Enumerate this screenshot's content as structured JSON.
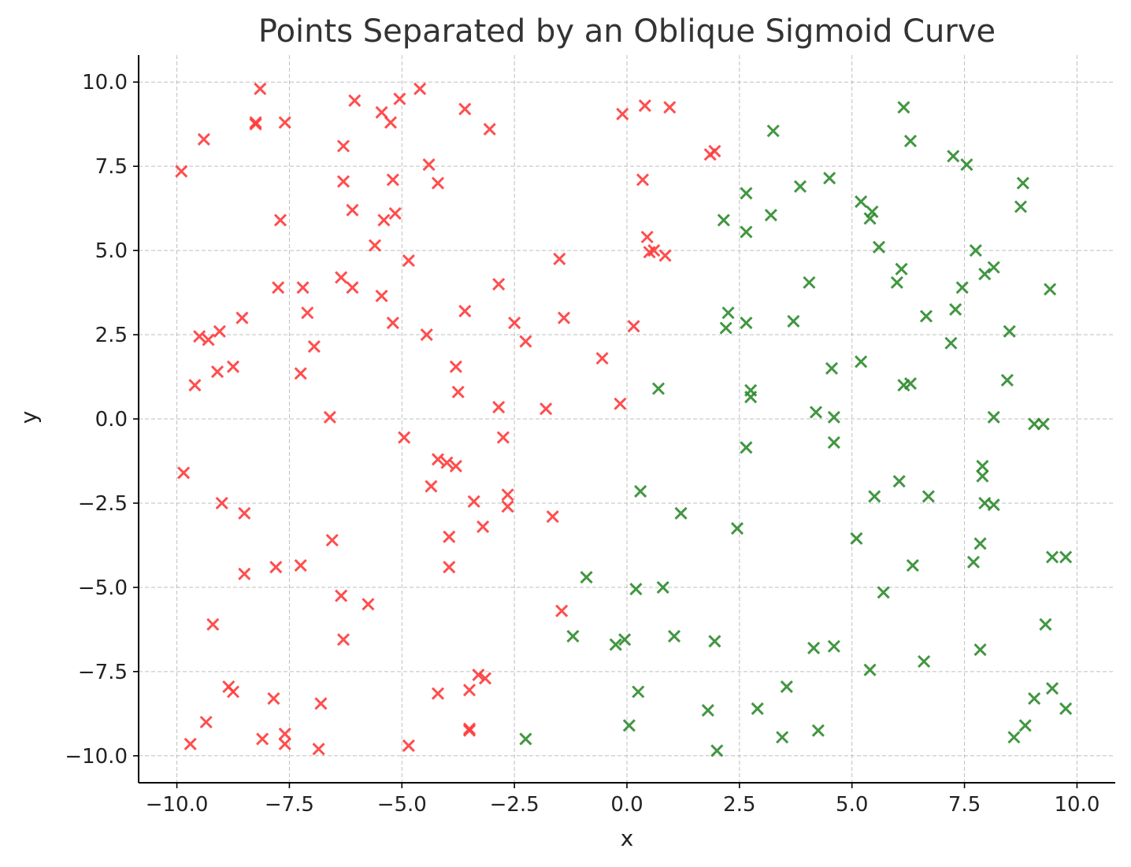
{
  "chart_data": {
    "type": "scatter",
    "title": "Points Separated by an Oblique Sigmoid Curve",
    "xlabel": "x",
    "ylabel": "y",
    "xlim": [
      -10.85,
      10.85
    ],
    "ylim": [
      -10.8,
      10.8
    ],
    "grid": true,
    "marker": "x",
    "x_ticks": [
      -10.0,
      -7.5,
      -5.0,
      -2.5,
      0.0,
      2.5,
      5.0,
      7.5,
      10.0
    ],
    "x_tick_labels": [
      "−10.0",
      "−7.5",
      "−5.0",
      "−2.5",
      "0.0",
      "2.5",
      "5.0",
      "7.5",
      "10.0"
    ],
    "y_ticks": [
      -10.0,
      -7.5,
      -5.0,
      -2.5,
      0.0,
      2.5,
      5.0,
      7.5,
      10.0
    ],
    "y_tick_labels": [
      "−10.0",
      "−7.5",
      "−5.0",
      "−2.5",
      "0.0",
      "2.5",
      "5.0",
      "7.5",
      "10.0"
    ],
    "series": [
      {
        "color": "#ff3b3b",
        "points": [
          [
            -9.9,
            7.35
          ],
          [
            -9.4,
            8.3
          ],
          [
            -8.15,
            9.8
          ],
          [
            -8.25,
            8.8
          ],
          [
            -8.25,
            8.75
          ],
          [
            -7.6,
            8.8
          ],
          [
            -6.05,
            9.45
          ],
          [
            -6.3,
            8.1
          ],
          [
            -6.3,
            7.05
          ],
          [
            -5.45,
            9.1
          ],
          [
            -5.05,
            9.5
          ],
          [
            -5.25,
            8.8
          ],
          [
            -4.6,
            9.8
          ],
          [
            -3.6,
            9.2
          ],
          [
            -3.05,
            8.6
          ],
          [
            -4.4,
            7.55
          ],
          [
            -5.2,
            7.1
          ],
          [
            -4.2,
            7.0
          ],
          [
            -6.1,
            6.2
          ],
          [
            -7.7,
            5.9
          ],
          [
            -5.4,
            5.9
          ],
          [
            -5.15,
            6.1
          ],
          [
            -5.6,
            5.15
          ],
          [
            -4.85,
            4.7
          ],
          [
            -6.35,
            4.2
          ],
          [
            -6.1,
            3.9
          ],
          [
            -7.75,
            3.9
          ],
          [
            -7.2,
            3.9
          ],
          [
            -5.45,
            3.65
          ],
          [
            -7.1,
            3.15
          ],
          [
            -8.55,
            3.0
          ],
          [
            -5.2,
            2.85
          ],
          [
            -9.05,
            2.6
          ],
          [
            -9.5,
            2.45
          ],
          [
            -9.3,
            2.35
          ],
          [
            -6.95,
            2.15
          ],
          [
            -4.45,
            2.5
          ],
          [
            -3.6,
            3.2
          ],
          [
            -2.85,
            4.0
          ],
          [
            -2.5,
            2.85
          ],
          [
            -2.25,
            2.3
          ],
          [
            -1.5,
            4.75
          ],
          [
            -1.4,
            3.0
          ],
          [
            -9.1,
            1.4
          ],
          [
            -8.75,
            1.55
          ],
          [
            -7.25,
            1.35
          ],
          [
            -9.6,
            1.0
          ],
          [
            -3.8,
            1.55
          ],
          [
            -3.75,
            0.8
          ],
          [
            -6.6,
            0.05
          ],
          [
            -2.85,
            0.35
          ],
          [
            -1.8,
            0.3
          ],
          [
            -0.55,
            1.8
          ],
          [
            -0.15,
            0.45
          ],
          [
            0.15,
            2.75
          ],
          [
            -4.95,
            -0.55
          ],
          [
            -2.75,
            -0.55
          ],
          [
            -4.2,
            -1.2
          ],
          [
            -4.0,
            -1.3
          ],
          [
            -3.8,
            -1.4
          ],
          [
            -9.85,
            -1.6
          ],
          [
            -9.0,
            -2.5
          ],
          [
            -8.5,
            -2.8
          ],
          [
            -4.35,
            -2.0
          ],
          [
            -3.4,
            -2.45
          ],
          [
            -2.65,
            -2.25
          ],
          [
            -2.65,
            -2.6
          ],
          [
            -1.65,
            -2.9
          ],
          [
            -3.2,
            -3.2
          ],
          [
            -3.95,
            -3.5
          ],
          [
            -6.55,
            -3.6
          ],
          [
            -7.8,
            -4.4
          ],
          [
            -7.25,
            -4.35
          ],
          [
            -8.5,
            -4.6
          ],
          [
            -3.95,
            -4.4
          ],
          [
            -6.35,
            -5.25
          ],
          [
            -5.75,
            -5.5
          ],
          [
            -1.45,
            -5.7
          ],
          [
            -9.2,
            -6.1
          ],
          [
            -6.3,
            -6.55
          ],
          [
            -8.85,
            -7.95
          ],
          [
            -8.75,
            -8.1
          ],
          [
            -7.85,
            -8.3
          ],
          [
            -6.8,
            -8.45
          ],
          [
            -4.2,
            -8.15
          ],
          [
            -3.5,
            -8.05
          ],
          [
            -3.3,
            -7.6
          ],
          [
            -3.15,
            -7.7
          ],
          [
            -9.35,
            -9.0
          ],
          [
            -3.5,
            -9.2
          ],
          [
            -3.5,
            -9.25
          ],
          [
            -9.7,
            -9.65
          ],
          [
            -8.1,
            -9.5
          ],
          [
            -7.6,
            -9.35
          ],
          [
            -7.6,
            -9.65
          ],
          [
            -6.85,
            -9.8
          ],
          [
            -4.85,
            -9.7
          ],
          [
            -0.1,
            9.05
          ],
          [
            0.4,
            9.3
          ],
          [
            0.95,
            9.25
          ],
          [
            1.85,
            7.85
          ],
          [
            1.95,
            7.95
          ],
          [
            0.35,
            7.1
          ],
          [
            0.45,
            5.4
          ],
          [
            0.5,
            4.95
          ],
          [
            0.6,
            5.0
          ],
          [
            0.85,
            4.85
          ]
        ]
      },
      {
        "color": "#2e8b2e",
        "points": [
          [
            6.15,
            9.25
          ],
          [
            3.25,
            8.55
          ],
          [
            6.3,
            8.25
          ],
          [
            7.25,
            7.8
          ],
          [
            7.55,
            7.55
          ],
          [
            4.5,
            7.15
          ],
          [
            8.8,
            7.0
          ],
          [
            3.85,
            6.9
          ],
          [
            2.65,
            6.7
          ],
          [
            5.2,
            6.45
          ],
          [
            5.45,
            6.15
          ],
          [
            5.4,
            5.95
          ],
          [
            3.2,
            6.05
          ],
          [
            8.75,
            6.3
          ],
          [
            2.15,
            5.9
          ],
          [
            2.65,
            5.55
          ],
          [
            5.6,
            5.1
          ],
          [
            7.75,
            5.0
          ],
          [
            6.1,
            4.45
          ],
          [
            8.15,
            4.5
          ],
          [
            7.95,
            4.3
          ],
          [
            4.05,
            4.05
          ],
          [
            6.0,
            4.05
          ],
          [
            7.45,
            3.9
          ],
          [
            9.4,
            3.85
          ],
          [
            2.25,
            3.15
          ],
          [
            7.3,
            3.25
          ],
          [
            6.65,
            3.05
          ],
          [
            2.65,
            2.85
          ],
          [
            3.7,
            2.9
          ],
          [
            2.2,
            2.7
          ],
          [
            8.5,
            2.6
          ],
          [
            7.2,
            2.25
          ],
          [
            5.2,
            1.7
          ],
          [
            4.55,
            1.5
          ],
          [
            8.45,
            1.15
          ],
          [
            6.15,
            1.0
          ],
          [
            6.3,
            1.05
          ],
          [
            0.7,
            0.9
          ],
          [
            2.75,
            0.85
          ],
          [
            2.75,
            0.65
          ],
          [
            4.2,
            0.2
          ],
          [
            4.6,
            0.05
          ],
          [
            8.15,
            0.05
          ],
          [
            9.05,
            -0.15
          ],
          [
            9.25,
            -0.15
          ],
          [
            4.6,
            -0.7
          ],
          [
            2.65,
            -0.85
          ],
          [
            7.9,
            -1.4
          ],
          [
            7.9,
            -1.7
          ],
          [
            6.05,
            -1.85
          ],
          [
            0.3,
            -2.15
          ],
          [
            5.5,
            -2.3
          ],
          [
            6.7,
            -2.3
          ],
          [
            7.95,
            -2.5
          ],
          [
            8.15,
            -2.55
          ],
          [
            1.2,
            -2.8
          ],
          [
            2.45,
            -3.25
          ],
          [
            5.1,
            -3.55
          ],
          [
            7.85,
            -3.7
          ],
          [
            9.45,
            -4.1
          ],
          [
            9.75,
            -4.1
          ],
          [
            7.7,
            -4.25
          ],
          [
            6.35,
            -4.35
          ],
          [
            -0.9,
            -4.7
          ],
          [
            0.2,
            -5.05
          ],
          [
            0.8,
            -5.0
          ],
          [
            5.7,
            -5.15
          ],
          [
            9.3,
            -6.1
          ],
          [
            -1.2,
            -6.45
          ],
          [
            1.05,
            -6.45
          ],
          [
            -0.05,
            -6.55
          ],
          [
            -0.25,
            -6.7
          ],
          [
            1.95,
            -6.6
          ],
          [
            4.15,
            -6.8
          ],
          [
            4.6,
            -6.75
          ],
          [
            6.6,
            -7.2
          ],
          [
            7.85,
            -6.85
          ],
          [
            5.4,
            -7.45
          ],
          [
            3.55,
            -7.95
          ],
          [
            9.45,
            -8.0
          ],
          [
            0.25,
            -8.1
          ],
          [
            9.05,
            -8.3
          ],
          [
            1.8,
            -8.65
          ],
          [
            2.9,
            -8.6
          ],
          [
            9.75,
            -8.6
          ],
          [
            8.85,
            -9.1
          ],
          [
            0.05,
            -9.1
          ],
          [
            4.25,
            -9.25
          ],
          [
            3.45,
            -9.45
          ],
          [
            -2.25,
            -9.5
          ],
          [
            8.6,
            -9.45
          ],
          [
            2.0,
            -9.85
          ]
        ]
      }
    ]
  }
}
